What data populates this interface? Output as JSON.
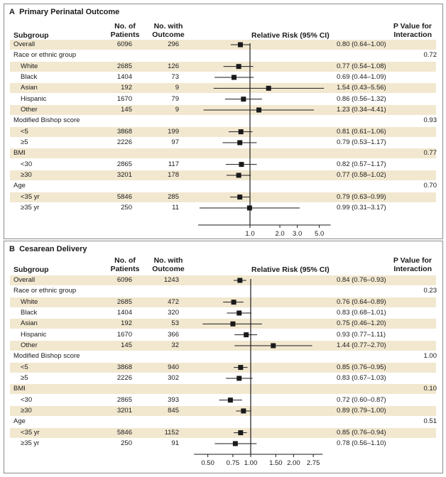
{
  "headers": {
    "subgroup": "Subgroup",
    "patients_l1": "No. of",
    "patients_l2": "Patients",
    "outcome_l1": "No. with",
    "outcome_l2": "Outcome",
    "rr": "Relative Risk (95% CI)",
    "pval_l1": "P Value for",
    "pval_l2": "Interaction"
  },
  "chart_data": [
    {
      "type": "forest",
      "panel_label": "A",
      "title": "Primary Perinatal Outcome",
      "x_scale": "log",
      "xlim": [
        0.3,
        6.5
      ],
      "reference_line": 1.0,
      "xticks": [
        1.0,
        2.0,
        3.0,
        5.0
      ],
      "xtick_labels": [
        "1.0",
        "2.0",
        "3.0",
        "5.0"
      ],
      "rows": [
        {
          "label": "Overall",
          "indent": false,
          "patients": "6096",
          "outcome": "296",
          "rr": 0.8,
          "lo": 0.64,
          "hi": 1.0,
          "ci_text": "0.80 (0.64–1.00)",
          "p": ""
        },
        {
          "label": "Race or ethnic group",
          "indent": false,
          "header": true,
          "patients": "",
          "outcome": "",
          "ci_text": "",
          "p": "0.72"
        },
        {
          "label": "White",
          "indent": true,
          "patients": "2685",
          "outcome": "126",
          "rr": 0.77,
          "lo": 0.54,
          "hi": 1.08,
          "ci_text": "0.77 (0.54–1.08)",
          "p": ""
        },
        {
          "label": "Black",
          "indent": true,
          "patients": "1404",
          "outcome": "73",
          "rr": 0.69,
          "lo": 0.44,
          "hi": 1.09,
          "ci_text": "0.69 (0.44–1.09)",
          "p": ""
        },
        {
          "label": "Asian",
          "indent": true,
          "patients": "192",
          "outcome": "9",
          "rr": 1.54,
          "lo": 0.43,
          "hi": 5.56,
          "ci_text": "1.54 (0.43–5.56)",
          "p": ""
        },
        {
          "label": "Hispanic",
          "indent": true,
          "patients": "1670",
          "outcome": "79",
          "rr": 0.86,
          "lo": 0.56,
          "hi": 1.32,
          "ci_text": "0.86 (0.56–1.32)",
          "p": ""
        },
        {
          "label": "Other",
          "indent": true,
          "patients": "145",
          "outcome": "9",
          "rr": 1.23,
          "lo": 0.34,
          "hi": 4.41,
          "ci_text": "1.23 (0.34–4.41)",
          "p": ""
        },
        {
          "label": "Modified Bishop score",
          "indent": false,
          "header": true,
          "patients": "",
          "outcome": "",
          "ci_text": "",
          "p": "0.93"
        },
        {
          "label": "<5",
          "indent": true,
          "patients": "3868",
          "outcome": "199",
          "rr": 0.81,
          "lo": 0.61,
          "hi": 1.06,
          "ci_text": "0.81 (0.61–1.06)",
          "p": ""
        },
        {
          "label": "≥5",
          "indent": true,
          "patients": "2226",
          "outcome": "97",
          "rr": 0.79,
          "lo": 0.53,
          "hi": 1.17,
          "ci_text": "0.79 (0.53–1.17)",
          "p": ""
        },
        {
          "label": "BMI",
          "indent": false,
          "header": true,
          "patients": "",
          "outcome": "",
          "ci_text": "",
          "p": "0.77"
        },
        {
          "label": "<30",
          "indent": true,
          "patients": "2865",
          "outcome": "117",
          "rr": 0.82,
          "lo": 0.57,
          "hi": 1.17,
          "ci_text": "0.82 (0.57–1.17)",
          "p": ""
        },
        {
          "label": "≥30",
          "indent": true,
          "patients": "3201",
          "outcome": "178",
          "rr": 0.77,
          "lo": 0.58,
          "hi": 1.02,
          "ci_text": "0.77 (0.58–1.02)",
          "p": ""
        },
        {
          "label": "Age",
          "indent": false,
          "header": true,
          "patients": "",
          "outcome": "",
          "ci_text": "",
          "p": "0.70"
        },
        {
          "label": "<35 yr",
          "indent": true,
          "patients": "5846",
          "outcome": "285",
          "rr": 0.79,
          "lo": 0.63,
          "hi": 0.99,
          "ci_text": "0.79 (0.63–0.99)",
          "p": ""
        },
        {
          "label": "≥35 yr",
          "indent": true,
          "patients": "250",
          "outcome": "11",
          "rr": 0.99,
          "lo": 0.31,
          "hi": 3.17,
          "ci_text": "0.99 (0.31–3.17)",
          "p": ""
        }
      ]
    },
    {
      "type": "forest",
      "panel_label": "B",
      "title": "Cesarean Delivery",
      "x_scale": "log",
      "xlim": [
        0.4,
        3.2
      ],
      "reference_line": 1.0,
      "xticks": [
        0.5,
        0.75,
        1.0,
        1.5,
        2.0,
        2.75
      ],
      "xtick_labels": [
        "0.50",
        "0.75",
        "1.00",
        "1.50",
        "2.00",
        "2.75"
      ],
      "rows": [
        {
          "label": "Overall",
          "indent": false,
          "patients": "6096",
          "outcome": "1243",
          "rr": 0.84,
          "lo": 0.76,
          "hi": 0.93,
          "ci_text": "0.84 (0.76–0.93)",
          "p": ""
        },
        {
          "label": "Race or ethnic group",
          "indent": false,
          "header": true,
          "patients": "",
          "outcome": "",
          "ci_text": "",
          "p": "0.23"
        },
        {
          "label": "White",
          "indent": true,
          "patients": "2685",
          "outcome": "472",
          "rr": 0.76,
          "lo": 0.64,
          "hi": 0.89,
          "ci_text": "0.76 (0.64–0.89)",
          "p": ""
        },
        {
          "label": "Black",
          "indent": true,
          "patients": "1404",
          "outcome": "320",
          "rr": 0.83,
          "lo": 0.68,
          "hi": 1.01,
          "ci_text": "0.83 (0.68–1.01)",
          "p": ""
        },
        {
          "label": "Asian",
          "indent": true,
          "patients": "192",
          "outcome": "53",
          "rr": 0.75,
          "lo": 0.46,
          "hi": 1.2,
          "ci_text": "0.75 (0.46–1.20)",
          "p": ""
        },
        {
          "label": "Hispanic",
          "indent": true,
          "patients": "1670",
          "outcome": "366",
          "rr": 0.93,
          "lo": 0.77,
          "hi": 1.11,
          "ci_text": "0.93 (0.77–1.11)",
          "p": ""
        },
        {
          "label": "Other",
          "indent": true,
          "patients": "145",
          "outcome": "32",
          "rr": 1.44,
          "lo": 0.77,
          "hi": 2.7,
          "ci_text": "1.44 (0.77–2.70)",
          "p": ""
        },
        {
          "label": "Modified Bishop score",
          "indent": false,
          "header": true,
          "patients": "",
          "outcome": "",
          "ci_text": "",
          "p": "1.00"
        },
        {
          "label": "<5",
          "indent": true,
          "patients": "3868",
          "outcome": "940",
          "rr": 0.85,
          "lo": 0.76,
          "hi": 0.95,
          "ci_text": "0.85 (0.76–0.95)",
          "p": ""
        },
        {
          "label": "≥5",
          "indent": true,
          "patients": "2226",
          "outcome": "302",
          "rr": 0.83,
          "lo": 0.67,
          "hi": 1.03,
          "ci_text": "0.83 (0.67–1.03)",
          "p": ""
        },
        {
          "label": "BMI",
          "indent": false,
          "header": true,
          "patients": "",
          "outcome": "",
          "ci_text": "",
          "p": "0.10"
        },
        {
          "label": "<30",
          "indent": true,
          "patients": "2865",
          "outcome": "393",
          "rr": 0.72,
          "lo": 0.6,
          "hi": 0.87,
          "ci_text": "0.72 (0.60–0.87)",
          "p": ""
        },
        {
          "label": "≥30",
          "indent": true,
          "patients": "3201",
          "outcome": "845",
          "rr": 0.89,
          "lo": 0.79,
          "hi": 1.0,
          "ci_text": "0.89 (0.79–1.00)",
          "p": ""
        },
        {
          "label": "Age",
          "indent": false,
          "header": true,
          "patients": "",
          "outcome": "",
          "ci_text": "",
          "p": "0.51"
        },
        {
          "label": "<35 yr",
          "indent": true,
          "patients": "5846",
          "outcome": "1152",
          "rr": 0.85,
          "lo": 0.76,
          "hi": 0.94,
          "ci_text": "0.85 (0.76–0.94)",
          "p": ""
        },
        {
          "label": "≥35 yr",
          "indent": true,
          "patients": "250",
          "outcome": "91",
          "rr": 0.78,
          "lo": 0.56,
          "hi": 1.1,
          "ci_text": "0.78 (0.56–1.10)",
          "p": ""
        }
      ]
    }
  ],
  "colors": {
    "row_shading": "#f2e8d0",
    "ink": "#1a1a1a",
    "border": "#8a8a8a"
  }
}
